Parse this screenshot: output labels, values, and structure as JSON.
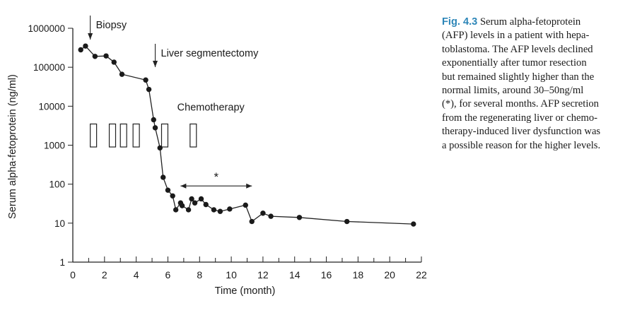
{
  "figure": {
    "label": "Fig. 4.3",
    "caption": "Serum alpha-fetoprotein (AFP) levels in a patient with hepa-toblastoma. The AFP levels declined exponentially after tumor resection but remained slightly higher than the normal limits, around 30–50ng/ml (*), for several months. AFP secretion from the regenerating liver or chemo-therapy-induced liver dysfunction was a possible reason for the higher levels.",
    "caption_lines": [
      "Serum alpha-fetoprotein",
      "(AFP) levels in a patient with hepa-",
      "toblastoma. The AFP levels declined",
      "exponentially after tumor resection",
      "but remained slightly higher than the",
      "normal limits, around 30–50ng/ml",
      "(*), for several months. AFP secretion",
      "from the regenerating liver or chemo-",
      "therapy-induced liver dysfunction was",
      "a possible reason for the higher levels."
    ]
  },
  "chart_data": {
    "type": "line",
    "xlabel": "Time (month)",
    "ylabel": "Serum alpha-fetoprotein (ng/ml)",
    "xlim": [
      0,
      22
    ],
    "ylim": [
      1,
      1000000
    ],
    "y_scale": "log",
    "x_ticks": [
      0,
      2,
      4,
      6,
      8,
      10,
      12,
      14,
      16,
      18,
      20,
      22
    ],
    "y_ticks": [
      1,
      10,
      100,
      1000,
      10000,
      100000,
      1000000
    ],
    "y_tick_labels": [
      "1",
      "10",
      "100",
      "1000",
      "10000",
      "100000",
      "1000000"
    ],
    "series": [
      {
        "x": [
          0.5,
          0.8,
          1.4,
          2.1,
          2.6,
          3.1,
          4.6,
          4.8,
          5.1,
          5.2,
          5.5,
          5.7,
          6.0,
          6.3,
          6.5,
          6.8,
          6.9,
          7.3,
          7.5,
          7.7,
          8.1,
          8.4,
          8.9,
          9.3,
          9.9,
          10.9,
          11.3,
          12.0,
          12.5,
          14.3,
          17.3,
          21.5
        ],
        "y": [
          280000,
          350000,
          190000,
          195000,
          135000,
          66000,
          47000,
          27000,
          4500,
          2800,
          850,
          150,
          70,
          50,
          22,
          33,
          28,
          22,
          42,
          33,
          42,
          30,
          22,
          20,
          23,
          29,
          11,
          18,
          15,
          14,
          11,
          9.5
        ]
      }
    ],
    "annotations": [
      {
        "text": "Biopsy",
        "x": 1.1,
        "type": "arrow"
      },
      {
        "text": "Liver segmentectomy",
        "x": 5.2,
        "type": "arrow"
      },
      {
        "text": "Chemotherapy",
        "type": "label",
        "x": 6.5,
        "y": 8000
      },
      {
        "text": "*",
        "type": "range",
        "x_start": 6.8,
        "x_end": 11.3,
        "y": 90
      }
    ],
    "chemotherapy_courses": [
      {
        "start": 1.1,
        "end": 1.5
      },
      {
        "start": 2.3,
        "end": 2.7
      },
      {
        "start": 3.0,
        "end": 3.4
      },
      {
        "start": 3.8,
        "end": 4.2
      },
      {
        "start": 5.6,
        "end": 6.0
      },
      {
        "start": 7.4,
        "end": 7.8
      }
    ],
    "chemotherapy_level": {
      "bottom": 900,
      "top": 3500
    },
    "grid": false,
    "legend": "none"
  }
}
